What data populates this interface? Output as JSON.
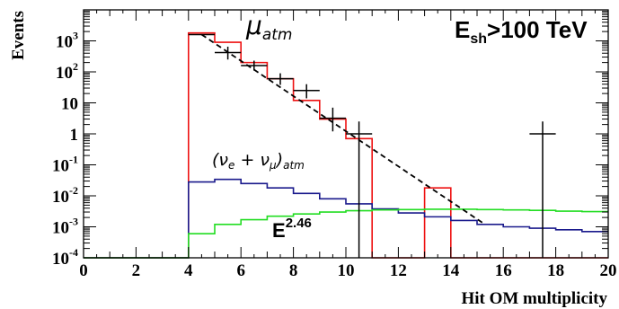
{
  "chart_data": {
    "type": "line",
    "xlabel": "Hit OM multiplicity",
    "ylabel": "Events",
    "xlim": [
      0,
      20
    ],
    "ylim": [
      0.0001,
      10000
    ],
    "yscale": "log",
    "x_ticks": [
      "0",
      "2",
      "4",
      "6",
      "8",
      "10",
      "12",
      "14",
      "16",
      "18",
      "20"
    ],
    "y_ticks": [
      {
        "value": 0.0001,
        "base": "10",
        "exp": "-4"
      },
      {
        "value": 0.001,
        "base": "10",
        "exp": "-3"
      },
      {
        "value": 0.01,
        "base": "10",
        "exp": "-2"
      },
      {
        "value": 0.1,
        "base": "10",
        "exp": "-1"
      },
      {
        "value": 1,
        "base": "1",
        "exp": ""
      },
      {
        "value": 10,
        "base": "10",
        "exp": ""
      },
      {
        "value": 100,
        "base": "10",
        "exp": "2"
      },
      {
        "value": 1000,
        "base": "10",
        "exp": "3"
      }
    ],
    "annotations": {
      "title_box": "E",
      "title_sub": "sh",
      "title_rest": ">100 TeV",
      "mu_label": "μ",
      "mu_sub": "atm",
      "nu_label_a": "(ν",
      "nu_sub_e": "e",
      "nu_label_b": " + ν",
      "nu_sub_mu": "μ",
      "nu_label_c": ")",
      "nu_sub_atm": "atm",
      "e_label": "E",
      "e_exp": "2.46"
    },
    "colors": {
      "mu_atm": "#ee1111",
      "nu_atm": "#1a1a8c",
      "astro": "#22dd22",
      "data": "#000000",
      "fit": "#000000"
    },
    "series": [
      {
        "key": "mu_atm",
        "edges": [
          0,
          4,
          5,
          6,
          7,
          8,
          9,
          10,
          11,
          12,
          13,
          14,
          15,
          16,
          17,
          18,
          19,
          20
        ],
        "values": [
          0.0001,
          1800,
          900,
          200,
          60,
          12,
          3,
          0.7,
          0.0001,
          0.0001,
          0.018,
          0.0001,
          0.0001,
          0.0001,
          0.0001,
          0.0001,
          0.0001
        ]
      },
      {
        "key": "nu_atm",
        "edges": [
          0,
          4,
          5,
          6,
          7,
          8,
          9,
          10,
          11,
          12,
          13,
          14,
          15,
          16,
          17,
          18,
          19,
          20
        ],
        "values": [
          0.0001,
          0.028,
          0.034,
          0.025,
          0.018,
          0.012,
          0.008,
          0.0055,
          0.0038,
          0.0028,
          0.0021,
          0.0016,
          0.0012,
          0.001,
          0.0009,
          0.0008,
          0.0007
        ]
      },
      {
        "key": "astro",
        "edges": [
          0,
          4,
          5,
          6,
          7,
          8,
          9,
          10,
          11,
          12,
          13,
          14,
          15,
          16,
          17,
          18,
          19,
          20
        ],
        "values": [
          0.0001,
          0.0006,
          0.0012,
          0.0017,
          0.0022,
          0.0026,
          0.003,
          0.0033,
          0.0035,
          0.0036,
          0.0037,
          0.0037,
          0.0036,
          0.0035,
          0.0034,
          0.0032,
          0.0031
        ]
      }
    ],
    "data_points": [
      {
        "x": 4.5,
        "y": 1600,
        "xerr": 0.5
      },
      {
        "x": 5.5,
        "y": 420,
        "xerr": 0.5,
        "ylo": 250,
        "yhi": 650
      },
      {
        "x": 6.5,
        "y": 160,
        "xerr": 0.5,
        "ylo": 110,
        "yhi": 230
      },
      {
        "x": 7.5,
        "y": 60,
        "xerr": 0.5,
        "ylo": 38,
        "yhi": 90
      },
      {
        "x": 8.5,
        "y": 25,
        "xerr": 0.5,
        "ylo": 14,
        "yhi": 40
      },
      {
        "x": 9.5,
        "y": 3.2,
        "xerr": 0.5,
        "ylo": 1.2,
        "yhi": 7
      },
      {
        "x": 10.5,
        "y": 1,
        "xerr": 0.5,
        "ylo": 0.0001,
        "yhi": 2.5
      },
      {
        "x": 17.5,
        "y": 1,
        "xerr": 0.5,
        "ylo": 0.0001,
        "yhi": 2.5
      }
    ],
    "fit_line": {
      "x": [
        4.5,
        15.3
      ],
      "y": [
        1600,
        0.0012
      ]
    }
  }
}
